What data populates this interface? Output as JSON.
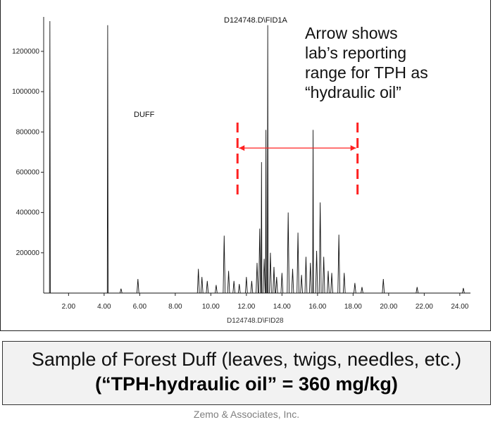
{
  "chart_data": {
    "type": "line",
    "title": "D124748.D\\FID1A",
    "xlabel": "",
    "ylabel": "",
    "xlim": [
      0.6,
      24.6
    ],
    "ylim": [
      0,
      1350000
    ],
    "x_ticks": [
      2,
      4,
      6,
      8,
      10,
      12,
      14,
      16,
      18,
      20,
      22,
      24
    ],
    "x_tick_labels": [
      "2.00",
      "4.00",
      "6.00",
      "8.00",
      "10.00",
      "12.00",
      "14.00",
      "16.00",
      "18.00",
      "20.00",
      "22.00",
      "24.00"
    ],
    "y_ticks": [
      200000,
      400000,
      600000,
      800000,
      1000000,
      1200000
    ],
    "y_tick_labels": [
      "200000",
      "400000",
      "600000",
      "800000",
      "1000000",
      "1200000"
    ],
    "x_footer_label": "D124748.D\\FID28",
    "sample_label": "DUFF",
    "series": [
      {
        "peaks": [
          {
            "x": 0.95,
            "y": 1350000
          },
          {
            "x": 4.2,
            "y": 1330000
          },
          {
            "x": 4.95,
            "y": 22000
          },
          {
            "x": 5.9,
            "y": 70000
          },
          {
            "x": 9.3,
            "y": 120000
          },
          {
            "x": 9.5,
            "y": 80000
          },
          {
            "x": 9.8,
            "y": 60000
          },
          {
            "x": 10.3,
            "y": 40000
          },
          {
            "x": 10.75,
            "y": 285000
          },
          {
            "x": 11.0,
            "y": 110000
          },
          {
            "x": 11.3,
            "y": 60000
          },
          {
            "x": 11.6,
            "y": 45000
          },
          {
            "x": 12.0,
            "y": 80000
          },
          {
            "x": 12.3,
            "y": 60000
          },
          {
            "x": 12.6,
            "y": 150000
          },
          {
            "x": 12.75,
            "y": 320000
          },
          {
            "x": 12.85,
            "y": 650000
          },
          {
            "x": 13.0,
            "y": 170000
          },
          {
            "x": 13.1,
            "y": 810000
          },
          {
            "x": 13.2,
            "y": 1330000
          },
          {
            "x": 13.35,
            "y": 200000
          },
          {
            "x": 13.55,
            "y": 130000
          },
          {
            "x": 13.7,
            "y": 80000
          },
          {
            "x": 14.0,
            "y": 100000
          },
          {
            "x": 14.35,
            "y": 400000
          },
          {
            "x": 14.6,
            "y": 120000
          },
          {
            "x": 14.9,
            "y": 300000
          },
          {
            "x": 15.1,
            "y": 90000
          },
          {
            "x": 15.35,
            "y": 180000
          },
          {
            "x": 15.6,
            "y": 150000
          },
          {
            "x": 15.75,
            "y": 810000
          },
          {
            "x": 15.95,
            "y": 210000
          },
          {
            "x": 16.15,
            "y": 450000
          },
          {
            "x": 16.35,
            "y": 180000
          },
          {
            "x": 16.6,
            "y": 110000
          },
          {
            "x": 16.8,
            "y": 100000
          },
          {
            "x": 17.2,
            "y": 290000
          },
          {
            "x": 17.5,
            "y": 100000
          },
          {
            "x": 18.1,
            "y": 50000
          },
          {
            "x": 18.5,
            "y": 30000
          },
          {
            "x": 19.7,
            "y": 70000
          },
          {
            "x": 21.6,
            "y": 30000
          },
          {
            "x": 24.2,
            "y": 25000
          }
        ]
      }
    ],
    "range_markers": {
      "x_start": 11.5,
      "x_end": 18.25,
      "arrow_y": 720000,
      "color": "#ff2020"
    }
  },
  "annotation": {
    "lines": [
      "Arrow shows",
      "lab’s reporting",
      "range for TPH as",
      "“hydraulic oil”"
    ]
  },
  "caption": {
    "line1": "Sample of Forest Duff (leaves, twigs, needles, etc.)",
    "line2": "(“TPH-hydraulic oil” = 360 mg/kg)"
  },
  "footer": "Zemo & Associates, Inc."
}
